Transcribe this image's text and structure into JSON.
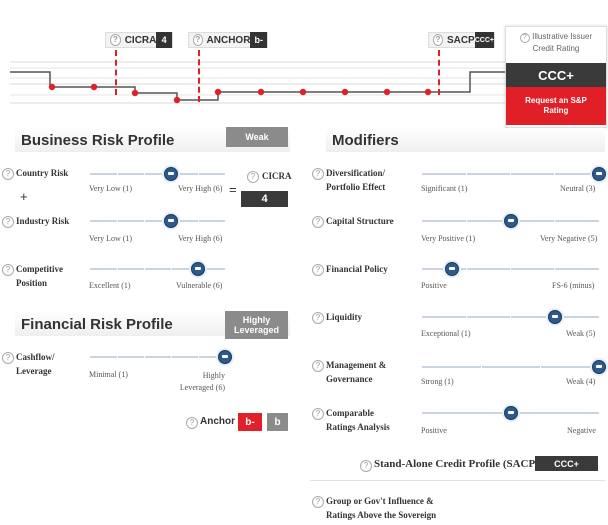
{
  "top_bar": {
    "cicra": {
      "label": "CICRA",
      "value": "4"
    },
    "anchor": {
      "label": "ANCHOR",
      "value": "b-"
    },
    "sacp": {
      "label": "SACP",
      "value": "CCC+"
    },
    "issuer": {
      "label_line1": "Illustrative Issuer",
      "label_line2": "Credit Rating",
      "rating": "CCC+",
      "request_line1": "Request an S&P",
      "request_line2": "Rating"
    }
  },
  "business_risk": {
    "title": "Business Risk Profile",
    "badge": "Weak",
    "country_risk": {
      "label": "Country Risk",
      "left": "Very Low (1)",
      "right": "Very High (6)",
      "level": 0.6
    },
    "plus": "+",
    "industry_risk": {
      "label": "Industry Risk",
      "left": "Very Low (1)",
      "right": "Very High (6)",
      "level": 0.6
    },
    "equals": "=",
    "cicra": {
      "label": "CICRA",
      "value": "4"
    },
    "competitive": {
      "label_line1": "Competitive",
      "label_line2": "Position",
      "left": "Excellent (1)",
      "right": "Vulnerable (6)",
      "level": 0.8
    }
  },
  "financial_risk": {
    "title": "Financial Risk Profile",
    "badge_line1": "Highly",
    "badge_line2": "Leveraged",
    "cashflow": {
      "label_line1": "Cashflow/",
      "label_line2": "Leverage",
      "left": "Minimal (1)",
      "right_line1": "Highly",
      "right_line2": "Leveraged (6)",
      "level": 1.0
    },
    "anchor": {
      "label": "Anchor",
      "value1": "b-",
      "value2": "b"
    }
  },
  "modifiers": {
    "title": "Modifiers",
    "items": [
      {
        "label_line1": "Diversification/",
        "label_line2": "Portfolio Effect",
        "left": "Significant (1)",
        "right": "Neutral (3)",
        "level": 1.0
      },
      {
        "label_line1": "Capital Structure",
        "label_line2": "",
        "left": "Very Positive (1)",
        "right": "Very Negative (5)",
        "level": 0.5
      },
      {
        "label_line1": "Financial Policy",
        "label_line2": "",
        "left": "Positive",
        "right": "FS-6 (minus)",
        "level": 0.17
      },
      {
        "label_line1": "Liquidity",
        "label_line2": "",
        "left": "Exceptional (1)",
        "right": "Weak (5)",
        "level": 0.75
      },
      {
        "label_line1": "Management &",
        "label_line2": "Governance",
        "left": "Strong (1)",
        "right": "Weak (4)",
        "level": 1.0
      },
      {
        "label_line1": "Comparable",
        "label_line2": "Ratings Analysis",
        "left": "Positive",
        "right": "Negative",
        "level": 0.5
      }
    ],
    "sacp": {
      "label": "Stand-Alone Credit Profile (SACP)",
      "value": "CCC+"
    },
    "group": {
      "label_line1": "Group or Gov't Influence &",
      "label_line2": "Ratings Above the Sovereign"
    }
  }
}
